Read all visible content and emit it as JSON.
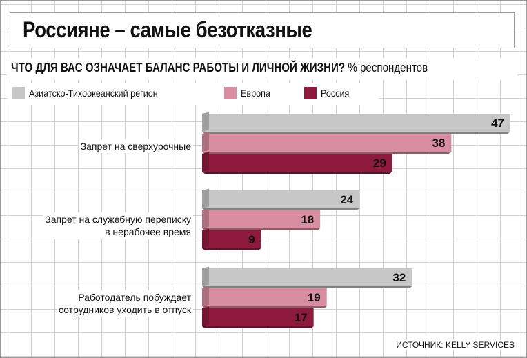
{
  "title": "Россияне – самые безотказные",
  "subtitle_bold": "ЧТО ДЛЯ ВАС ОЗНАЧАЕТ БАЛАНС РАБОТЫ И ЛИЧНОЙ ЖИЗНИ?",
  "subtitle_unit": "% респондентов",
  "source": "ИСТОЧНИК: KELLY SERVICES",
  "colors": {
    "asia": "#c7c7c7",
    "europe": "#d98da0",
    "russia": "#8e1b3d"
  },
  "chart_data": {
    "type": "bar",
    "orientation": "horizontal",
    "categories": [
      "Запрет на сверхурочные",
      "Запрет на служебную переписку в нерабочее время",
      "Работодатель побуждает сотрудников уходить в отпуск"
    ],
    "category_lines": [
      [
        "Запрет на сверхурочные"
      ],
      [
        "Запрет на служебную переписку",
        "в нерабочее время"
      ],
      [
        "Работодатель побуждает",
        "сотрудников уходить в отпуск"
      ]
    ],
    "series": [
      {
        "name": "Азиатско-Тихоокеанский регион",
        "values": [
          47,
          24,
          32
        ]
      },
      {
        "name": "Европа",
        "values": [
          38,
          18,
          19
        ]
      },
      {
        "name": "Россия",
        "values": [
          29,
          9,
          17
        ]
      }
    ],
    "xlim": [
      0,
      47
    ],
    "legend_position": "top-left",
    "grid": true
  }
}
